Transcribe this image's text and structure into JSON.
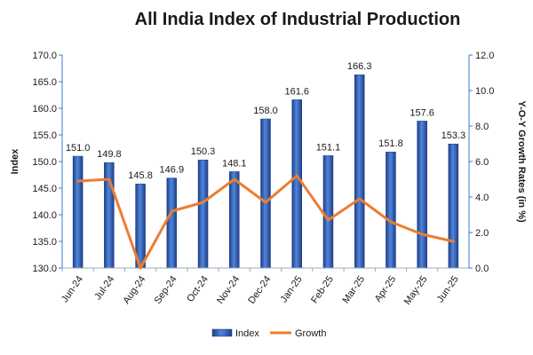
{
  "chart_data": {
    "type": "bar+line",
    "title": "All India Index of Industrial Production",
    "categories": [
      "Jun-24",
      "Jul-24",
      "Aug-24",
      "Sep-24",
      "Oct-24",
      "Nov-24",
      "Dec-24",
      "Jan-25",
      "Feb-25",
      "Mar-25",
      "Apr-25",
      "May-25",
      "Jun-25"
    ],
    "series": [
      {
        "name": "Index",
        "type": "bar",
        "axis": "left",
        "color": "#2f5fb3",
        "values": [
          151.0,
          149.8,
          145.8,
          146.9,
          150.3,
          148.1,
          158.0,
          161.6,
          151.1,
          166.3,
          151.8,
          157.6,
          153.3
        ],
        "labels": [
          "151.0",
          "149.8",
          "145.8",
          "146.9",
          "150.3",
          "148.1",
          "158.0",
          "161.6",
          "151.1",
          "166.3",
          "151.8",
          "157.6",
          "153.3"
        ]
      },
      {
        "name": "Growth",
        "type": "line",
        "axis": "right",
        "color": "#ed7d31",
        "values": [
          4.9,
          5.0,
          0.0,
          3.2,
          3.7,
          5.0,
          3.7,
          5.2,
          2.7,
          3.9,
          2.6,
          1.9,
          1.5
        ]
      }
    ],
    "ylabel_left": "Index",
    "ylabel_right": "Y-O-Y Growth Rates (in %)",
    "ylim_left": [
      130,
      170
    ],
    "ylim_right": [
      0,
      12
    ],
    "yticks_left": [
      "130.0",
      "135.0",
      "140.0",
      "145.0",
      "150.0",
      "155.0",
      "160.0",
      "165.0",
      "170.0"
    ],
    "yticks_right": [
      "0.0",
      "2.0",
      "4.0",
      "6.0",
      "8.0",
      "10.0",
      "12.0"
    ],
    "grid": false,
    "legend_position": "bottom"
  }
}
